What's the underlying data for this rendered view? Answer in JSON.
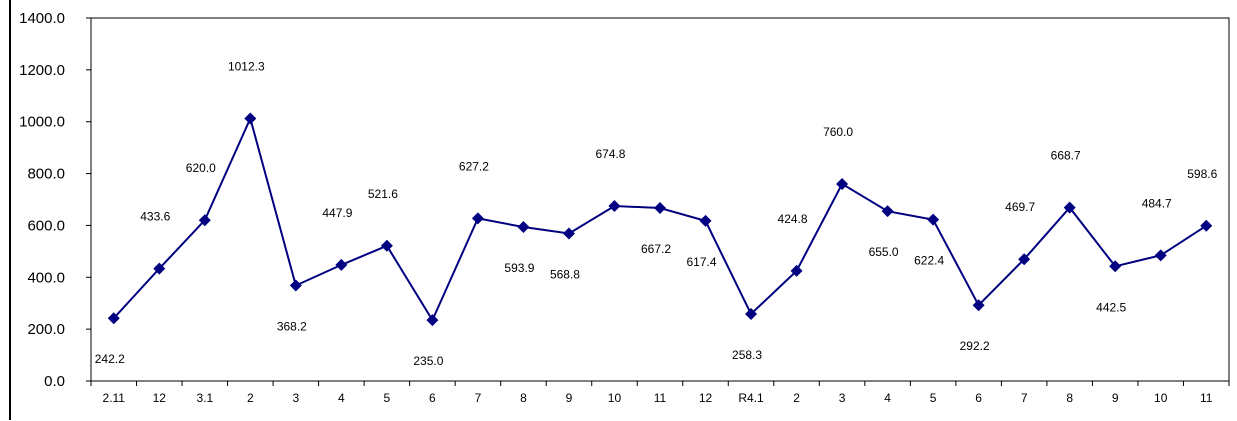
{
  "chart_data": {
    "type": "line",
    "title": "",
    "xlabel": "",
    "ylabel": "",
    "ylim": [
      0,
      1400
    ],
    "y_ticks": [
      "0.0",
      "200.0",
      "400.0",
      "600.0",
      "800.0",
      "1000.0",
      "1200.0",
      "1400.0"
    ],
    "y_tick_values": [
      0,
      200,
      400,
      600,
      800,
      1000,
      1200,
      1400
    ],
    "categories": [
      "2.11",
      "12",
      "3.1",
      "2",
      "3",
      "4",
      "5",
      "6",
      "7",
      "8",
      "9",
      "10",
      "11",
      "12",
      "R4.1",
      "2",
      "3",
      "4",
      "5",
      "6",
      "7",
      "8",
      "9",
      "10",
      "11"
    ],
    "series": [
      {
        "values": [
          242.2,
          433.6,
          620.0,
          1012.3,
          368.2,
          447.9,
          521.6,
          235.0,
          627.2,
          593.9,
          568.8,
          674.8,
          667.2,
          617.4,
          258.3,
          424.8,
          760.0,
          655.0,
          622.4,
          292.2,
          469.7,
          668.7,
          442.5,
          484.7,
          598.6
        ],
        "labels": [
          "242.2",
          "433.6",
          "620.0",
          "1012.3",
          "368.2",
          "447.9",
          "521.6",
          "235.0",
          "627.2",
          "593.9",
          "568.8",
          "674.8",
          "667.2",
          "617.4",
          "258.3",
          "424.8",
          "760.0",
          "655.0",
          "622.4",
          "292.2",
          "469.7",
          "668.7",
          "442.5",
          "484.7",
          "598.6"
        ],
        "label_placement": [
          "below",
          "above",
          "above",
          "above",
          "below",
          "above",
          "above",
          "below",
          "above",
          "below",
          "below",
          "above",
          "below",
          "below",
          "below",
          "above",
          "above",
          "below",
          "below",
          "below",
          "above",
          "above",
          "below",
          "above",
          "above"
        ],
        "color": "#000080"
      }
    ],
    "grid": false,
    "legend": "none",
    "colors": {
      "line": "#000080",
      "marker": "#000080",
      "axis": "#000000",
      "frame": "#000000"
    }
  }
}
